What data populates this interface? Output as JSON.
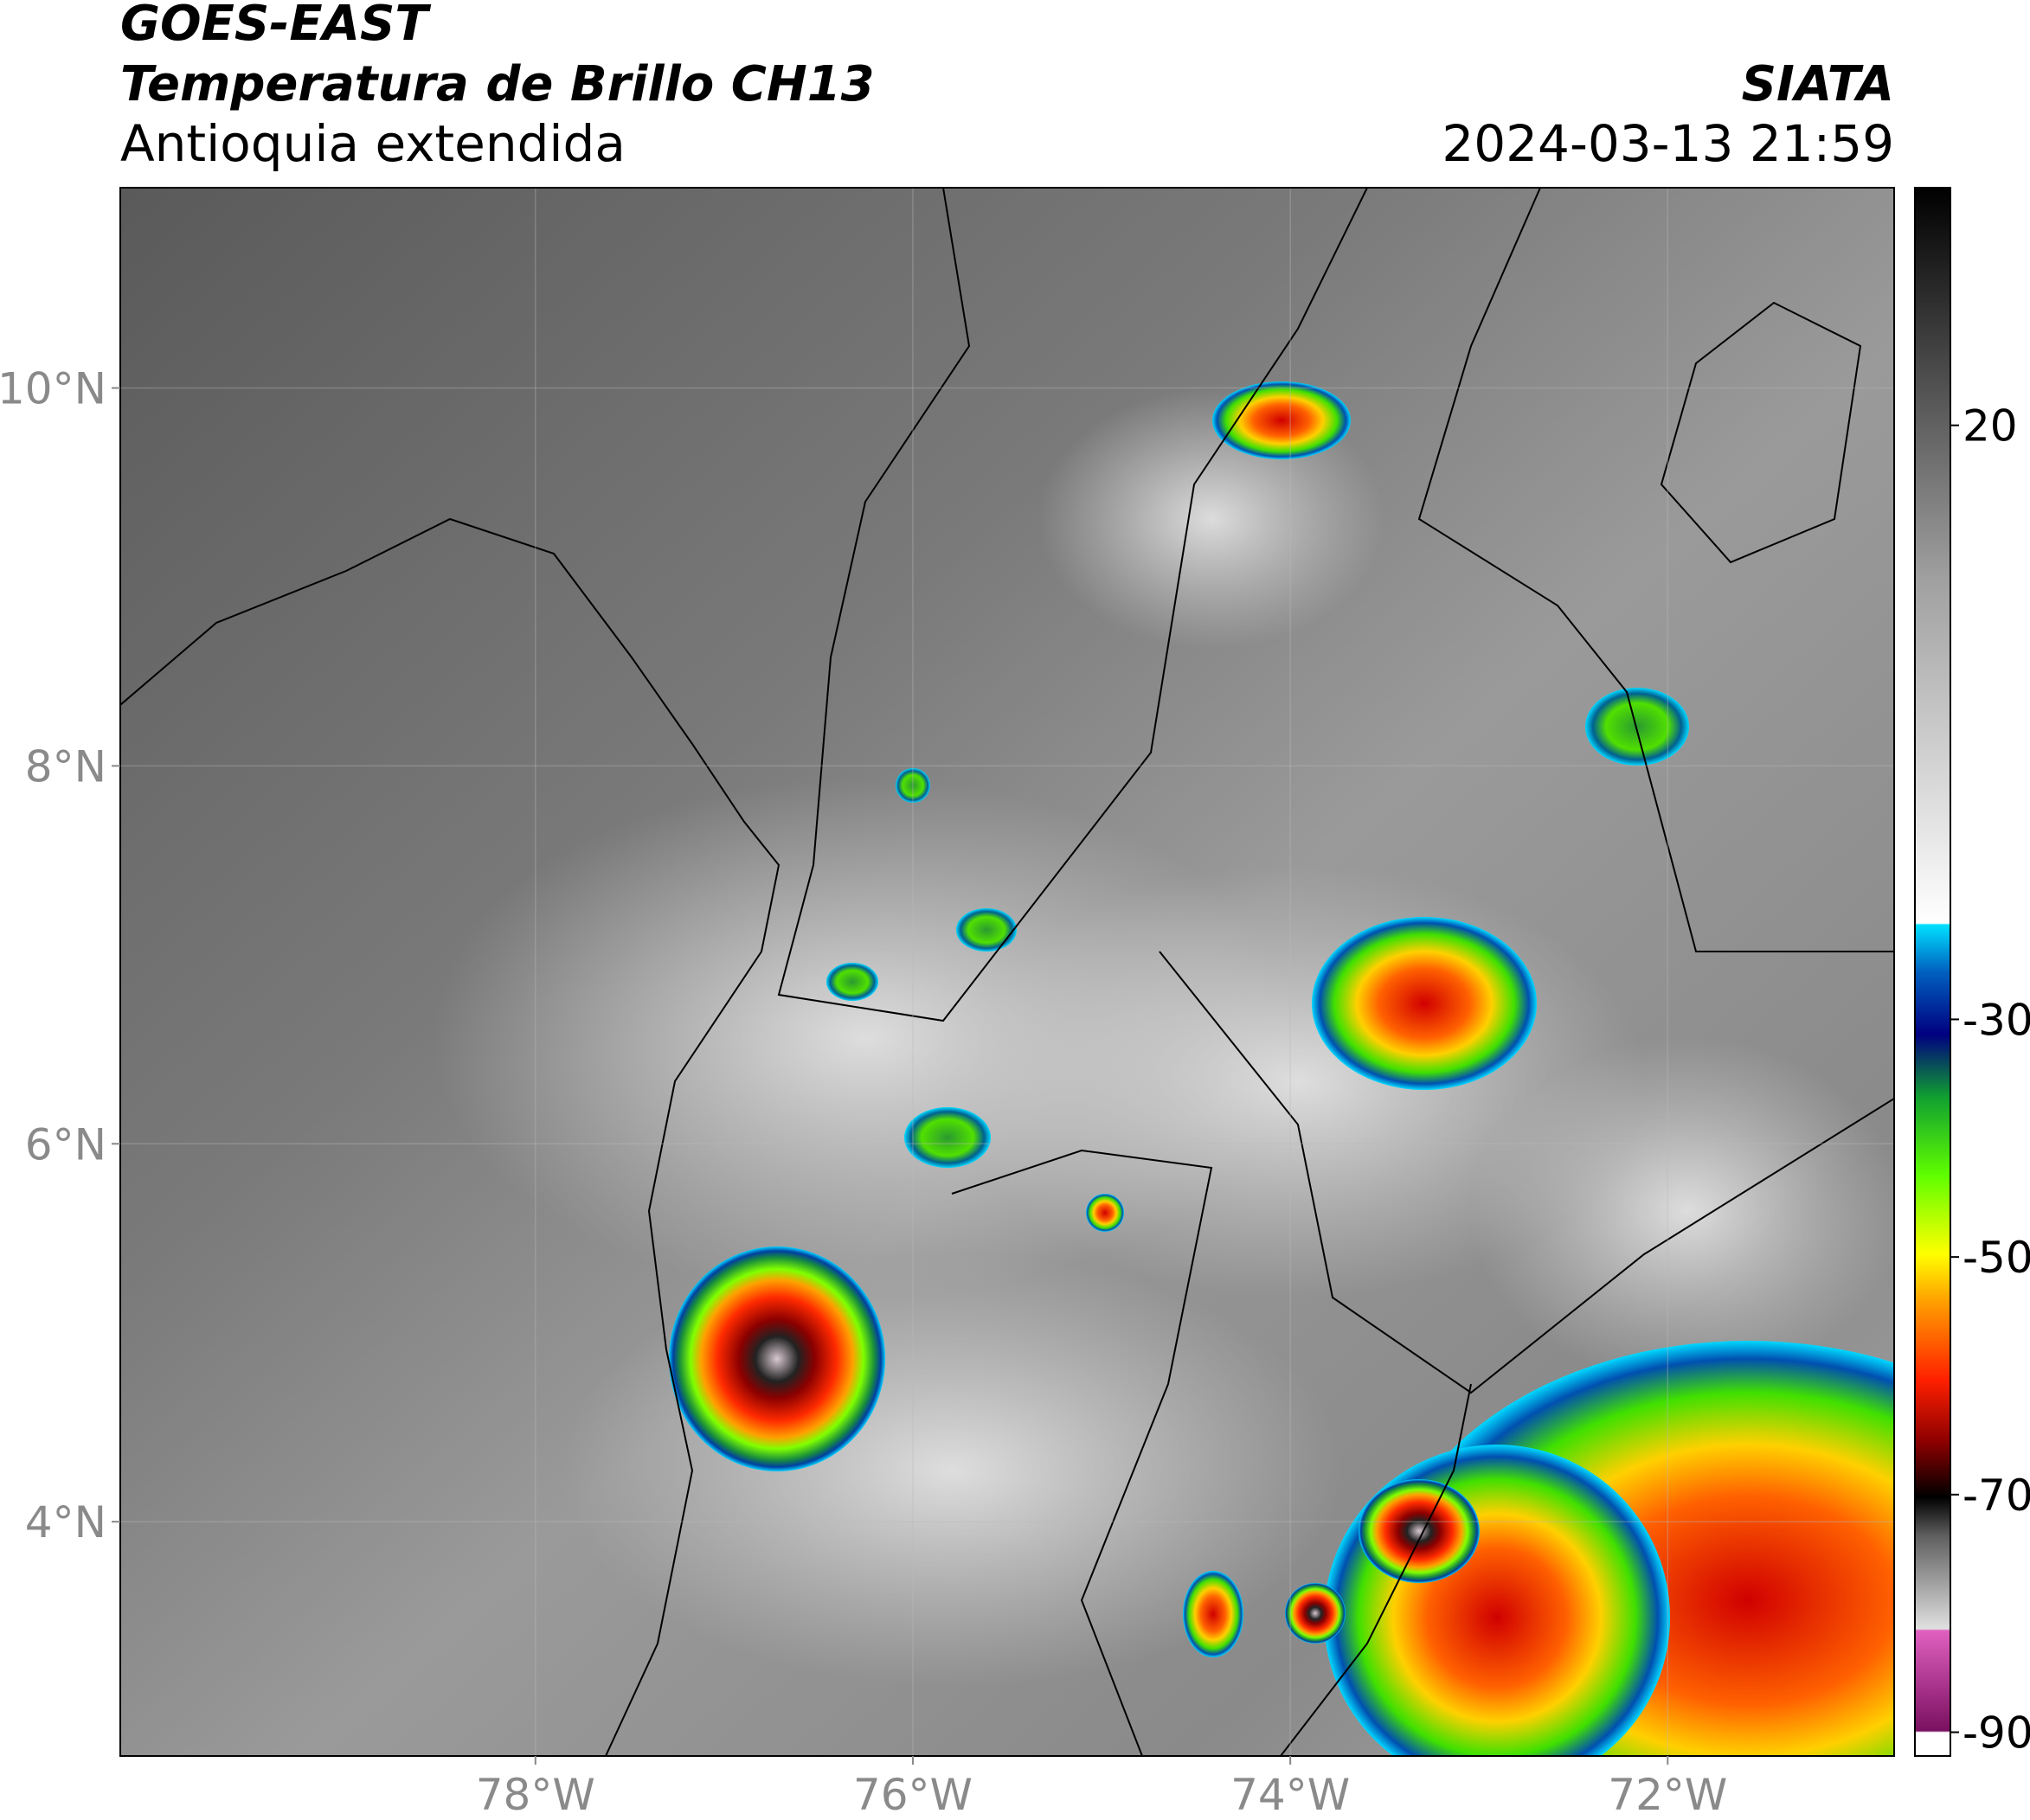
{
  "header": {
    "title": "GOES-EAST",
    "subtitle": "Temperatura de Brillo CH13",
    "region": "Antioquia extendida",
    "source": "SIATA",
    "datetime": "2024-03-13 21:59"
  },
  "map": {
    "xlim": [
      -80.2,
      -70.8
    ],
    "ylim": [
      2.76,
      11.06
    ],
    "xticks": [
      {
        "value": -78,
        "label": "78°W"
      },
      {
        "value": -76,
        "label": "76°W"
      },
      {
        "value": -74,
        "label": "74°W"
      },
      {
        "value": -72,
        "label": "72°W"
      }
    ],
    "yticks": [
      {
        "value": 10,
        "label": "10°N"
      },
      {
        "value": 8,
        "label": "8°N"
      },
      {
        "value": 6,
        "label": "6°N"
      },
      {
        "value": 4,
        "label": "4°N"
      }
    ],
    "grid": true
  },
  "colorbar": {
    "lim": [
      -92,
      40
    ],
    "ticks": [
      20,
      -30,
      -50,
      -70,
      -90
    ]
  }
}
